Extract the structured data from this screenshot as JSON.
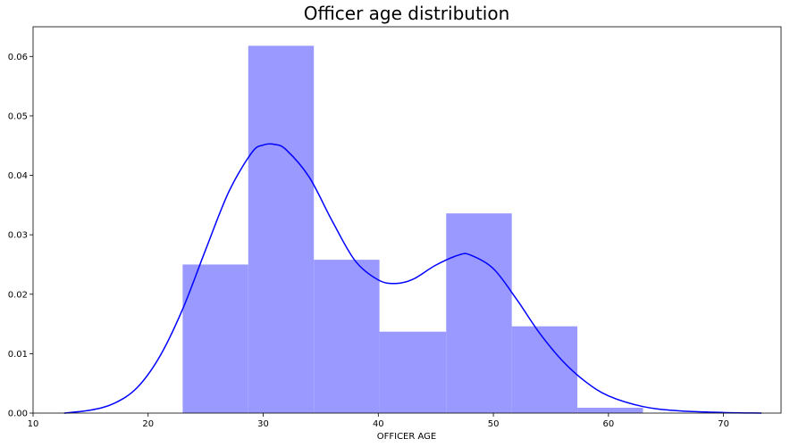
{
  "chart_data": {
    "type": "bar",
    "title": "Officer age distribution",
    "xlabel": "OFFICER AGE",
    "ylabel": "",
    "xlim": [
      10,
      75
    ],
    "ylim": [
      0,
      0.065
    ],
    "xticks": [
      10,
      20,
      30,
      40,
      50,
      60,
      70
    ],
    "yticks": [
      0.0,
      0.01,
      0.02,
      0.03,
      0.04,
      0.05,
      0.06
    ],
    "ytick_labels": [
      "0.00",
      "0.01",
      "0.02",
      "0.03",
      "0.04",
      "0.05",
      "0.06"
    ],
    "grid": false,
    "legend": "none",
    "histogram": {
      "bin_edges": [
        23.0,
        28.7,
        34.4,
        40.1,
        45.9,
        51.6,
        57.3,
        63.0
      ],
      "values": [
        0.025,
        0.0618,
        0.0258,
        0.0137,
        0.0336,
        0.0146,
        0.0009
      ],
      "color": "#9999ff"
    },
    "kde": {
      "color": "#0000ff",
      "x": [
        12.7,
        15,
        17,
        19,
        21,
        23,
        25,
        27,
        29,
        30,
        31,
        32,
        34,
        36,
        38,
        40,
        41.5,
        43,
        45,
        47,
        48,
        50,
        52,
        54,
        56,
        58,
        60,
        63,
        66,
        70,
        73.3
      ],
      "y": [
        0.0,
        0.0005,
        0.0016,
        0.0042,
        0.0095,
        0.0175,
        0.0275,
        0.0372,
        0.0438,
        0.0451,
        0.0452,
        0.0443,
        0.0397,
        0.0323,
        0.0256,
        0.0224,
        0.0218,
        0.0225,
        0.0249,
        0.0266,
        0.0266,
        0.0243,
        0.0192,
        0.0135,
        0.0088,
        0.0053,
        0.0029,
        0.0011,
        0.0004,
        0.0001,
        0.0
      ]
    }
  }
}
